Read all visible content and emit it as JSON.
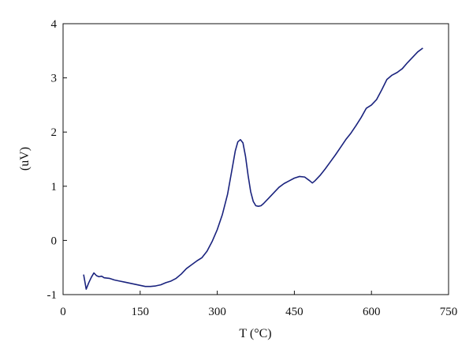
{
  "chart_data": {
    "type": "line",
    "title": "",
    "xlabel": "T (°C)",
    "ylabel": "(uV)",
    "xlim": [
      0,
      750
    ],
    "ylim": [
      -1,
      4
    ],
    "x_ticks": [
      0,
      150,
      300,
      450,
      600,
      750
    ],
    "y_ticks": [
      -1,
      0,
      1,
      2,
      3,
      4
    ],
    "grid": false,
    "legend": "none",
    "line_color": "#1a237e",
    "series": [
      {
        "x": [
          40,
          45,
          50,
          55,
          60,
          65,
          70,
          75,
          80,
          90,
          100,
          110,
          120,
          130,
          140,
          150,
          160,
          170,
          180,
          190,
          200,
          210,
          220,
          230,
          240,
          250,
          260,
          270,
          280,
          290,
          300,
          310,
          320,
          330,
          335,
          340,
          345,
          350,
          355,
          360,
          365,
          370,
          375,
          380,
          385,
          390,
          400,
          410,
          420,
          430,
          440,
          450,
          460,
          470,
          480,
          485,
          490,
          500,
          510,
          520,
          530,
          540,
          550,
          560,
          570,
          580,
          590,
          600,
          610,
          620,
          630,
          640,
          650,
          660,
          670,
          680,
          690,
          700
        ],
        "y": [
          -0.63,
          -0.9,
          -0.78,
          -0.68,
          -0.6,
          -0.65,
          -0.67,
          -0.66,
          -0.69,
          -0.7,
          -0.73,
          -0.75,
          -0.77,
          -0.79,
          -0.81,
          -0.83,
          -0.85,
          -0.85,
          -0.84,
          -0.82,
          -0.78,
          -0.75,
          -0.7,
          -0.62,
          -0.52,
          -0.45,
          -0.38,
          -0.32,
          -0.2,
          -0.02,
          0.2,
          0.48,
          0.85,
          1.38,
          1.65,
          1.82,
          1.86,
          1.8,
          1.55,
          1.2,
          0.9,
          0.72,
          0.64,
          0.63,
          0.64,
          0.68,
          0.78,
          0.88,
          0.98,
          1.05,
          1.1,
          1.15,
          1.18,
          1.17,
          1.1,
          1.06,
          1.1,
          1.2,
          1.32,
          1.45,
          1.58,
          1.72,
          1.86,
          1.98,
          2.12,
          2.27,
          2.44,
          2.5,
          2.6,
          2.78,
          2.97,
          3.05,
          3.1,
          3.17,
          3.28,
          3.38,
          3.48,
          3.55
        ]
      }
    ]
  }
}
